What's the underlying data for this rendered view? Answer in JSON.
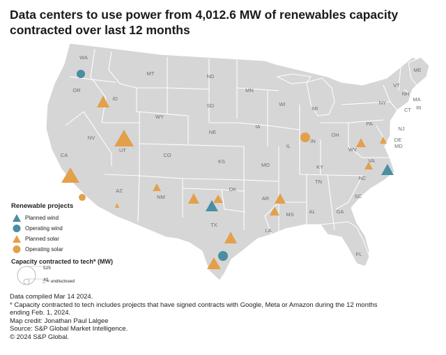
{
  "title": {
    "line1": "Data centers to use power from 4,012.6 MW of renewables capacity",
    "line2": "contracted over last 12 months"
  },
  "colors": {
    "land": "#d6d6d6",
    "borders": "#ffffff",
    "wind": "#4a8ea3",
    "solar": "#e3a04a"
  },
  "state_labels": [
    "WA",
    "OR",
    "ID",
    "MT",
    "ND",
    "SD",
    "WY",
    "NE",
    "NV",
    "UT",
    "CO",
    "KS",
    "CA",
    "AZ",
    "NM",
    "OK",
    "TX",
    "MN",
    "IA",
    "MO",
    "AR",
    "LA",
    "WI",
    "IL",
    "MI",
    "IN",
    "OH",
    "KY",
    "TN",
    "MS",
    "AL",
    "GA",
    "SC",
    "NC",
    "FL",
    "VA",
    "WV",
    "PA",
    "NY",
    "ME",
    "VT",
    "NH",
    "MA",
    "RI",
    "CT",
    "NJ",
    "DE",
    "MD"
  ],
  "legend": {
    "title": "Renewable projects",
    "items": [
      {
        "label": "Planned wind",
        "icon": "triangle-icon",
        "color": "#4a8ea3"
      },
      {
        "label": "Operating wind",
        "icon": "circle-icon",
        "color": "#4a8ea3"
      },
      {
        "label": "Planned solar",
        "icon": "triangle-icon",
        "color": "#e3a04a"
      },
      {
        "label": "Operating solar",
        "icon": "circle-icon",
        "color": "#e3a04a"
      }
    ]
  },
  "capacity_legend": {
    "title": "Capacity contracted to tech* (MW)",
    "max_label": "525",
    "min_label": "40",
    "undisclosed_label": "= undisclosed"
  },
  "projects": [
    {
      "state": "OR",
      "type": "operating",
      "tech": "wind",
      "size": "small"
    },
    {
      "state": "ID",
      "type": "planned",
      "tech": "solar",
      "size": "small"
    },
    {
      "state": "UT",
      "type": "planned",
      "tech": "solar",
      "size": "large"
    },
    {
      "state": "CA",
      "type": "planned",
      "tech": "solar",
      "size": "large"
    },
    {
      "state": "CA",
      "type": "operating",
      "tech": "solar",
      "size": "small"
    },
    {
      "state": "AZ",
      "type": "planned",
      "tech": "solar",
      "size": "undisclosed"
    },
    {
      "state": "NM",
      "type": "planned",
      "tech": "solar",
      "size": "small"
    },
    {
      "state": "TX",
      "type": "planned",
      "tech": "solar",
      "size": "medium"
    },
    {
      "state": "TX",
      "type": "planned",
      "tech": "wind",
      "size": "medium"
    },
    {
      "state": "OK",
      "type": "planned",
      "tech": "solar",
      "size": "small"
    },
    {
      "state": "TX",
      "type": "planned",
      "tech": "solar",
      "size": "medium"
    },
    {
      "state": "TX",
      "type": "operating",
      "tech": "wind",
      "size": "medium"
    },
    {
      "state": "TX",
      "type": "planned",
      "tech": "solar",
      "size": "medium"
    },
    {
      "state": "AR",
      "type": "planned",
      "tech": "solar",
      "size": "medium"
    },
    {
      "state": "MS",
      "type": "planned",
      "tech": "solar",
      "size": "small"
    },
    {
      "state": "IN",
      "type": "operating",
      "tech": "solar",
      "size": "medium"
    },
    {
      "state": "WV",
      "type": "planned",
      "tech": "solar",
      "size": "small"
    },
    {
      "state": "PA",
      "type": "planned",
      "tech": "solar",
      "size": "small"
    },
    {
      "state": "VA",
      "type": "planned",
      "tech": "solar",
      "size": "small"
    },
    {
      "state": "NC",
      "type": "planned",
      "tech": "wind",
      "size": "medium"
    }
  ],
  "footnotes": [
    "Data compiled Mar 14 2024.",
    "* Capacity contracted to tech includes projects that have signed contracts with Google, Meta or Amazon during the 12 months",
    "ending Feb. 1, 2024.",
    "Map credit: Jonathan Paul Lalgee",
    "Source: S&P Global Market Intelligence.",
    "© 2024 S&P Global."
  ]
}
